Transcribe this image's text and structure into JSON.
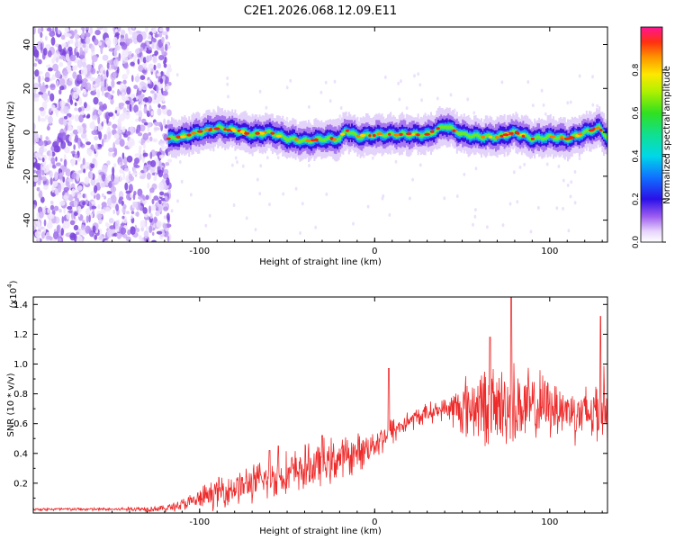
{
  "title": "C2E1.2026.068.12.09.E11",
  "chart_data": [
    {
      "type": "heatmap",
      "name": "spectrogram",
      "xlabel": "Height of straight line (km)",
      "ylabel": "Frequency (Hz)",
      "xlim": [
        -195,
        133
      ],
      "ylim": [
        -50,
        48
      ],
      "xticks": [
        -100,
        0,
        100
      ],
      "yticks": [
        -40,
        -20,
        0,
        20,
        40
      ],
      "noise_region_x": [
        -195,
        -117
      ],
      "ridge": {
        "x": [
          -118,
          -110,
          -100,
          -90,
          -80,
          -70,
          -60,
          -50,
          -40,
          -30,
          -20,
          -17,
          -10,
          0,
          10,
          20,
          30,
          40,
          50,
          60,
          70,
          80,
          90,
          100,
          110,
          120,
          128,
          133
        ],
        "freq": [
          -3,
          -2,
          0,
          2,
          1,
          -1,
          0,
          -3,
          -4,
          -3,
          -3,
          1,
          -2,
          -1,
          -1,
          -1,
          -1,
          3,
          -1,
          -2,
          -2,
          0,
          -3,
          -2,
          -3,
          0,
          2,
          -3
        ]
      },
      "colorbar": {
        "label": "Normalized spectral amplitude",
        "range": [
          0.0,
          1.0
        ],
        "ticks": [
          "0.0",
          "0.2",
          "0.4",
          "0.6",
          "0.8"
        ]
      }
    },
    {
      "type": "line",
      "name": "snr",
      "xlabel": "Height of straight line (km)",
      "ylabel": "SNR (10 * v/v)",
      "yscale_label": "(x10",
      "yscale_exp": "4",
      "yscale_close": ")",
      "xlim": [
        -195,
        133
      ],
      "ylim": [
        0,
        1.45
      ],
      "xticks": [
        -100,
        0,
        100
      ],
      "yticks": [
        "0.2",
        "0.4",
        "0.6",
        "0.8",
        "1.0",
        "1.2",
        "1.4"
      ],
      "color": "#ee2b2b",
      "envelope": {
        "x": [
          -195,
          -150,
          -120,
          -105,
          -90,
          -70,
          -50,
          -30,
          -10,
          0,
          10,
          20,
          30,
          40,
          50,
          60,
          70,
          80,
          90,
          100,
          110,
          120,
          133
        ],
        "mean": [
          0.025,
          0.025,
          0.03,
          0.07,
          0.14,
          0.2,
          0.26,
          0.33,
          0.4,
          0.47,
          0.55,
          0.62,
          0.67,
          0.7,
          0.7,
          0.73,
          0.71,
          0.72,
          0.7,
          0.72,
          0.69,
          0.66,
          0.72
        ],
        "amp": [
          0.01,
          0.01,
          0.02,
          0.05,
          0.09,
          0.11,
          0.13,
          0.14,
          0.11,
          0.09,
          0.09,
          0.06,
          0.06,
          0.06,
          0.18,
          0.22,
          0.24,
          0.25,
          0.22,
          0.18,
          0.16,
          0.18,
          0.24
        ]
      },
      "peaks": [
        {
          "x": 78,
          "y": 1.45
        },
        {
          "x": 129,
          "y": 1.32
        },
        {
          "x": 66,
          "y": 1.18
        },
        {
          "x": 8,
          "y": 0.97
        },
        {
          "x": -60,
          "y": 0.42
        },
        {
          "x": -55,
          "y": 0.45
        },
        {
          "x": -30,
          "y": 0.52
        }
      ]
    }
  ]
}
